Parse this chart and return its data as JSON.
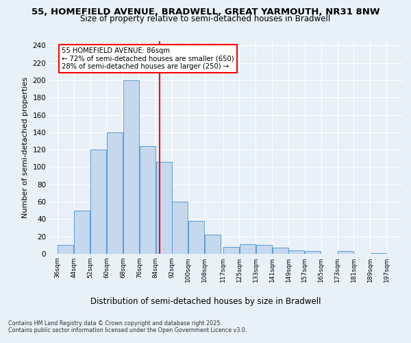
{
  "title1": "55, HOMEFIELD AVENUE, BRADWELL, GREAT YARMOUTH, NR31 8NW",
  "title2": "Size of property relative to semi-detached houses in Bradwell",
  "xlabel": "Distribution of semi-detached houses by size in Bradwell",
  "ylabel": "Number of semi-detached properties",
  "footnote1": "Contains HM Land Registry data © Crown copyright and database right 2025.",
  "footnote2": "Contains public sector information licensed under the Open Government Licence v3.0.",
  "bar_left_edges": [
    36,
    44,
    52,
    60,
    68,
    76,
    84,
    92,
    100,
    108,
    117,
    125,
    133,
    141,
    149,
    157,
    165,
    173,
    181,
    189
  ],
  "bar_heights": [
    10,
    50,
    120,
    140,
    200,
    124,
    106,
    60,
    38,
    22,
    8,
    11,
    10,
    7,
    4,
    3,
    0,
    3,
    0,
    1
  ],
  "bar_widths": [
    8,
    8,
    8,
    8,
    8,
    8,
    8,
    8,
    8,
    8,
    8,
    8,
    8,
    8,
    8,
    8,
    8,
    8,
    8,
    8
  ],
  "tick_labels": [
    "36sqm",
    "44sqm",
    "52sqm",
    "60sqm",
    "68sqm",
    "76sqm",
    "84sqm",
    "92sqm",
    "100sqm",
    "108sqm",
    "117sqm",
    "125sqm",
    "133sqm",
    "141sqm",
    "149sqm",
    "157sqm",
    "165sqm",
    "173sqm",
    "181sqm",
    "189sqm",
    "197sqm"
  ],
  "tick_positions": [
    36,
    44,
    52,
    60,
    68,
    76,
    84,
    92,
    100,
    108,
    117,
    125,
    133,
    141,
    149,
    157,
    165,
    173,
    181,
    189,
    197
  ],
  "bar_color": "#c5d8ed",
  "bar_edge_color": "#5b9bd5",
  "vline_x": 86,
  "vline_color": "red",
  "ylim": [
    0,
    245
  ],
  "yticks": [
    0,
    20,
    40,
    60,
    80,
    100,
    120,
    140,
    160,
    180,
    200,
    220,
    240
  ],
  "annotation_title": "55 HOMEFIELD AVENUE: 86sqm",
  "annotation_line1": "← 72% of semi-detached houses are smaller (650)",
  "annotation_line2": "28% of semi-detached houses are larger (250) →",
  "bg_color": "#e8f0f8",
  "grid_color": "white",
  "xlim_left": 32,
  "xlim_right": 205
}
